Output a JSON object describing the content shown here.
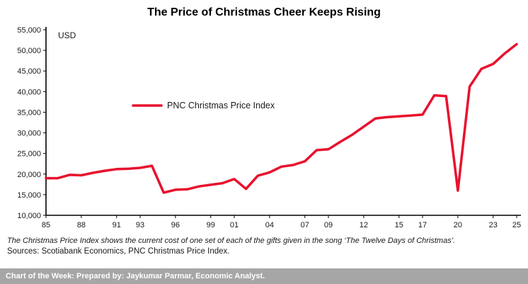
{
  "title": "The Price of Christmas Cheer Keeps Rising",
  "axis": {
    "unit_label": "USD"
  },
  "legend": {
    "label": "PNC Christmas Price Index"
  },
  "notes": {
    "definition": "The Christmas Price Index shows the current cost of one set of each of the gifts given in the song ‘The Twelve Days of Christmas’.",
    "sources": "Sources: Scotiabank Economics, PNC Christmas Price Index."
  },
  "footer": {
    "text": "Chart of the Week: Prepared by: Jaykumar Parmar, Economic Analyst."
  },
  "colors": {
    "line": "#e8112d",
    "axis": "#000000",
    "tick_text": "#1a1a1a",
    "footer_bg": "#a6a6a6"
  },
  "chart_data": {
    "type": "line",
    "title": "The Price of Christmas Cheer Keeps Rising",
    "xlabel": "",
    "ylabel": "USD",
    "ylim": [
      10000,
      55000
    ],
    "ytick_step": 5000,
    "grid": false,
    "legend_position": "inside-left",
    "xticks": [
      1985,
      1988,
      1991,
      1993,
      1996,
      1999,
      2001,
      2004,
      2007,
      2009,
      2012,
      2015,
      2017,
      2020,
      2023,
      2025
    ],
    "xtick_labels": [
      "85",
      "88",
      "91",
      "93",
      "96",
      "99",
      "01",
      "04",
      "07",
      "09",
      "12",
      "15",
      "17",
      "20",
      "23",
      "25"
    ],
    "series": [
      {
        "name": "PNC Christmas Price Index",
        "x": [
          1985,
          1986,
          1987,
          1988,
          1989,
          1990,
          1991,
          1992,
          1993,
          1994,
          1995,
          1996,
          1997,
          1998,
          1999,
          2000,
          2001,
          2002,
          2003,
          2004,
          2005,
          2006,
          2007,
          2008,
          2009,
          2010,
          2011,
          2012,
          2013,
          2014,
          2015,
          2016,
          2017,
          2018,
          2019,
          2020,
          2021,
          2022,
          2023,
          2024,
          2025
        ],
        "values": [
          19000,
          19000,
          19800,
          19700,
          20300,
          20800,
          21200,
          21300,
          21500,
          22000,
          15500,
          16200,
          16300,
          17000,
          17400,
          17800,
          18800,
          16400,
          19600,
          20400,
          21800,
          22200,
          23100,
          25800,
          26000,
          27800,
          29500,
          31500,
          33500,
          33800,
          34000,
          34200,
          34400,
          39100,
          38900,
          16000,
          41200,
          45500,
          46700,
          49300,
          51500
        ]
      }
    ]
  }
}
